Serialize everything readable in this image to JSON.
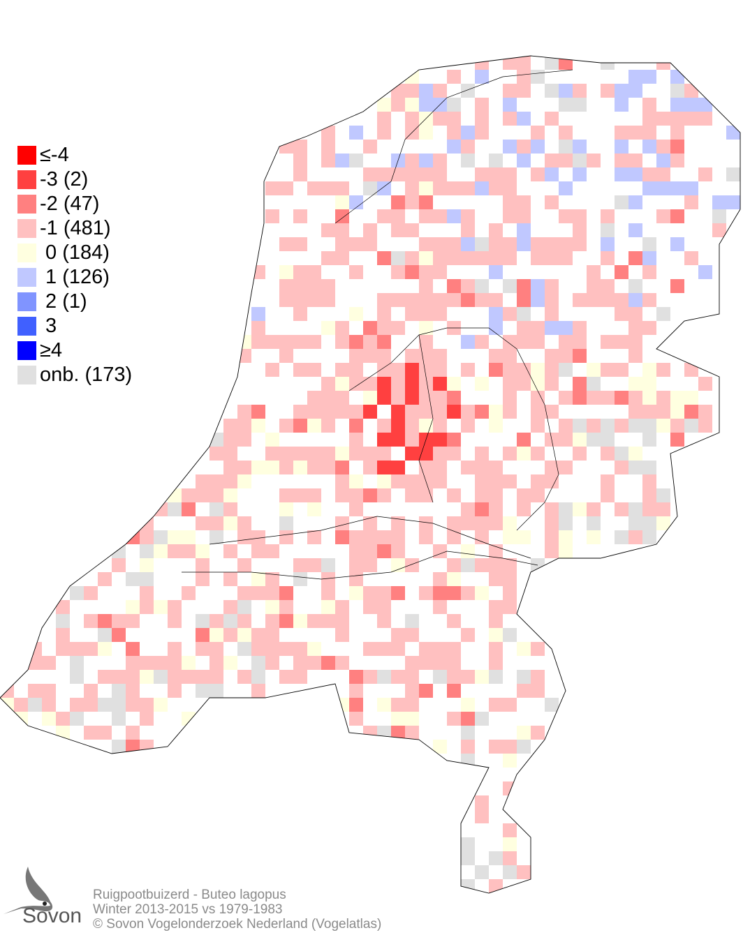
{
  "legend": [
    {
      "label": "≤-4",
      "color": "#ff0000"
    },
    {
      "label": "-3 (2)",
      "color": "#ff4040"
    },
    {
      "label": "-2 (47)",
      "color": "#ff8080"
    },
    {
      "label": "-1 (481)",
      "color": "#ffc0c0"
    },
    {
      "label": " 0 (184)",
      "color": "#ffffe0"
    },
    {
      "label": " 1 (126)",
      "color": "#c0c8ff"
    },
    {
      "label": " 2 (1)",
      "color": "#8094ff"
    },
    {
      "label": " 3",
      "color": "#4060ff"
    },
    {
      "label": "≥4",
      "color": "#0000ff"
    },
    {
      "label": "onb. (173)",
      "color": "#e0e0e0"
    }
  ],
  "caption": {
    "species": "Ruigpootbuizerd - Buteo lagopus",
    "period": "Winter 2013-2015 vs 1979-1983",
    "copyright": "© Sovon Vogelonderzoek Nederland (Vogelatlas)"
  },
  "logo": {
    "text": "Sovon"
  }
}
